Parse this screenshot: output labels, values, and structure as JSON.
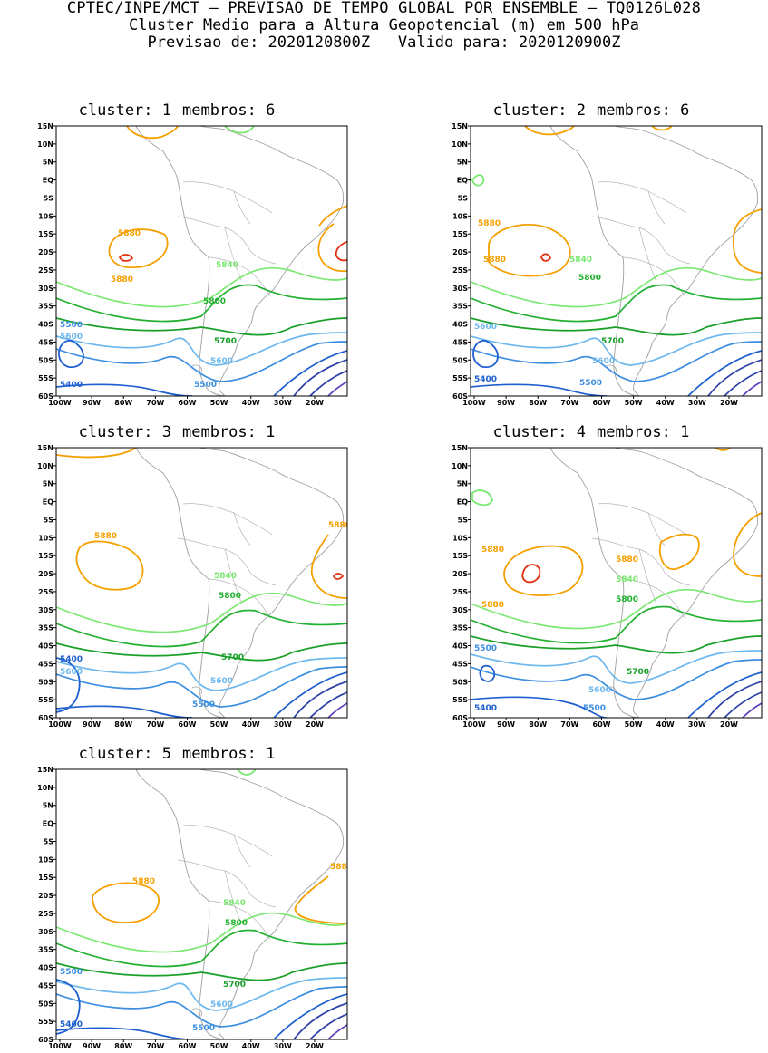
{
  "header": {
    "line1": "CPTEC/INPE/MCT – PREVISAO DE TEMPO GLOBAL POR ENSEMBLE – TQ0126L028",
    "line2": "Cluster Medio para a Altura Geopotencial (m) em 500 hPa",
    "line3_forecast": "Previsao de: 2020120800Z",
    "line3_valid": "Valido para: 2020120900Z"
  },
  "axes": {
    "lat_ticks": [
      "15N",
      "10N",
      "5N",
      "EQ",
      "5S",
      "10S",
      "15S",
      "20S",
      "25S",
      "30S",
      "35S",
      "40S",
      "45S",
      "50S",
      "55S",
      "60S"
    ],
    "lon_ticks": [
      "100W",
      "90W",
      "80W",
      "70W",
      "60W",
      "50W",
      "40W",
      "30W",
      "20W"
    ]
  },
  "contour_colors": {
    "5880": "#f5a000",
    "5900": "#e03010",
    "5840": "#7ae870",
    "5800": "#22b030",
    "5700": "#18a028",
    "5600": "#6fb8ee",
    "5500": "#3c8ee0",
    "5400": "#1e5fcf",
    "deep": "#2a3fa8",
    "deepest": "#6040b8",
    "coast": "#a0a0a0"
  },
  "panels": [
    {
      "label": "cluster: 1",
      "members": "membros: 6",
      "contour_labels": [
        "5880",
        "5880",
        "5840",
        "5800",
        "5700",
        "5600",
        "5500",
        "5400",
        "5500",
        "5600"
      ]
    },
    {
      "label": "cluster: 2",
      "members": "membros: 6",
      "contour_labels": [
        "5880",
        "5880",
        "5840",
        "5800",
        "5700",
        "5600",
        "5500",
        "5400",
        "5600"
      ]
    },
    {
      "label": "cluster: 3",
      "members": "membros: 1",
      "contour_labels": [
        "5880",
        "5880",
        "5840",
        "5800",
        "5700",
        "5600",
        "5500",
        "5400",
        "5600"
      ]
    },
    {
      "label": "cluster: 4",
      "members": "membros: 1",
      "contour_labels": [
        "5880",
        "5880",
        "5880",
        "5840",
        "5800",
        "5700",
        "5600",
        "5500",
        "5400",
        "5500"
      ]
    },
    {
      "label": "cluster: 5",
      "members": "membros: 1",
      "contour_labels": [
        "5880",
        "5880",
        "5840",
        "5800",
        "5700",
        "5600",
        "5500",
        "5400",
        "5500"
      ]
    }
  ]
}
